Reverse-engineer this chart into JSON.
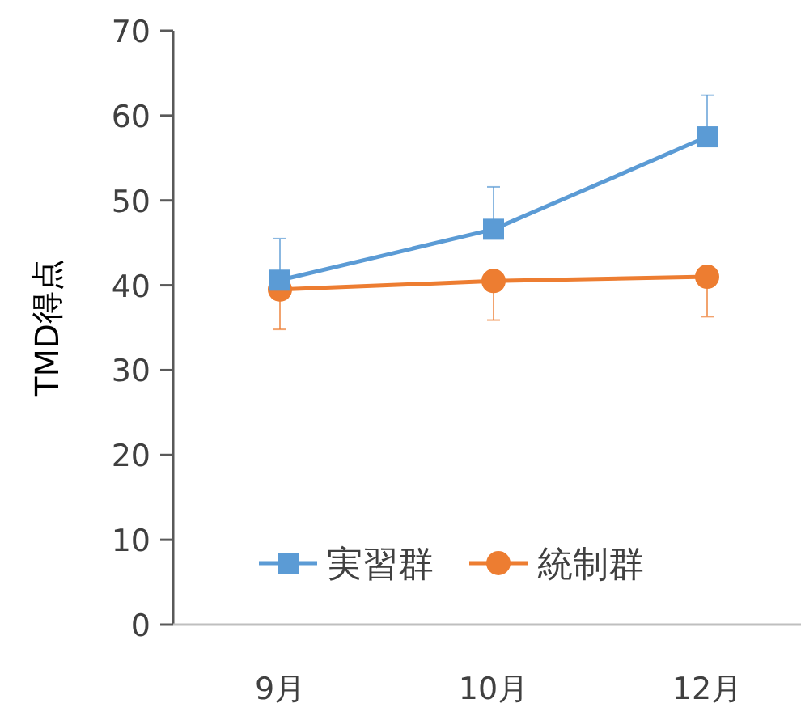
{
  "chart_data": {
    "type": "line",
    "ylabel": "TMD得点",
    "categories": [
      "9月",
      "10月",
      "12月"
    ],
    "ylim": [
      0,
      70
    ],
    "yticks": [
      0,
      10,
      20,
      30,
      40,
      50,
      60,
      70
    ],
    "legend": "bottom",
    "series": [
      {
        "name": "実習群",
        "color": "#5b9bd5",
        "marker": "square",
        "values": [
          40.6,
          46.6,
          57.5
        ],
        "errors": [
          [
            40.6,
            45.5
          ],
          [
            46.6,
            51.6
          ],
          [
            57.5,
            62.4
          ]
        ]
      },
      {
        "name": "統制群",
        "color": "#ed7d31",
        "marker": "circle",
        "values": [
          39.5,
          40.5,
          41.0
        ],
        "errors": [
          [
            34.8,
            39.5
          ],
          [
            35.9,
            40.5
          ],
          [
            36.3,
            41.0
          ]
        ]
      }
    ]
  }
}
